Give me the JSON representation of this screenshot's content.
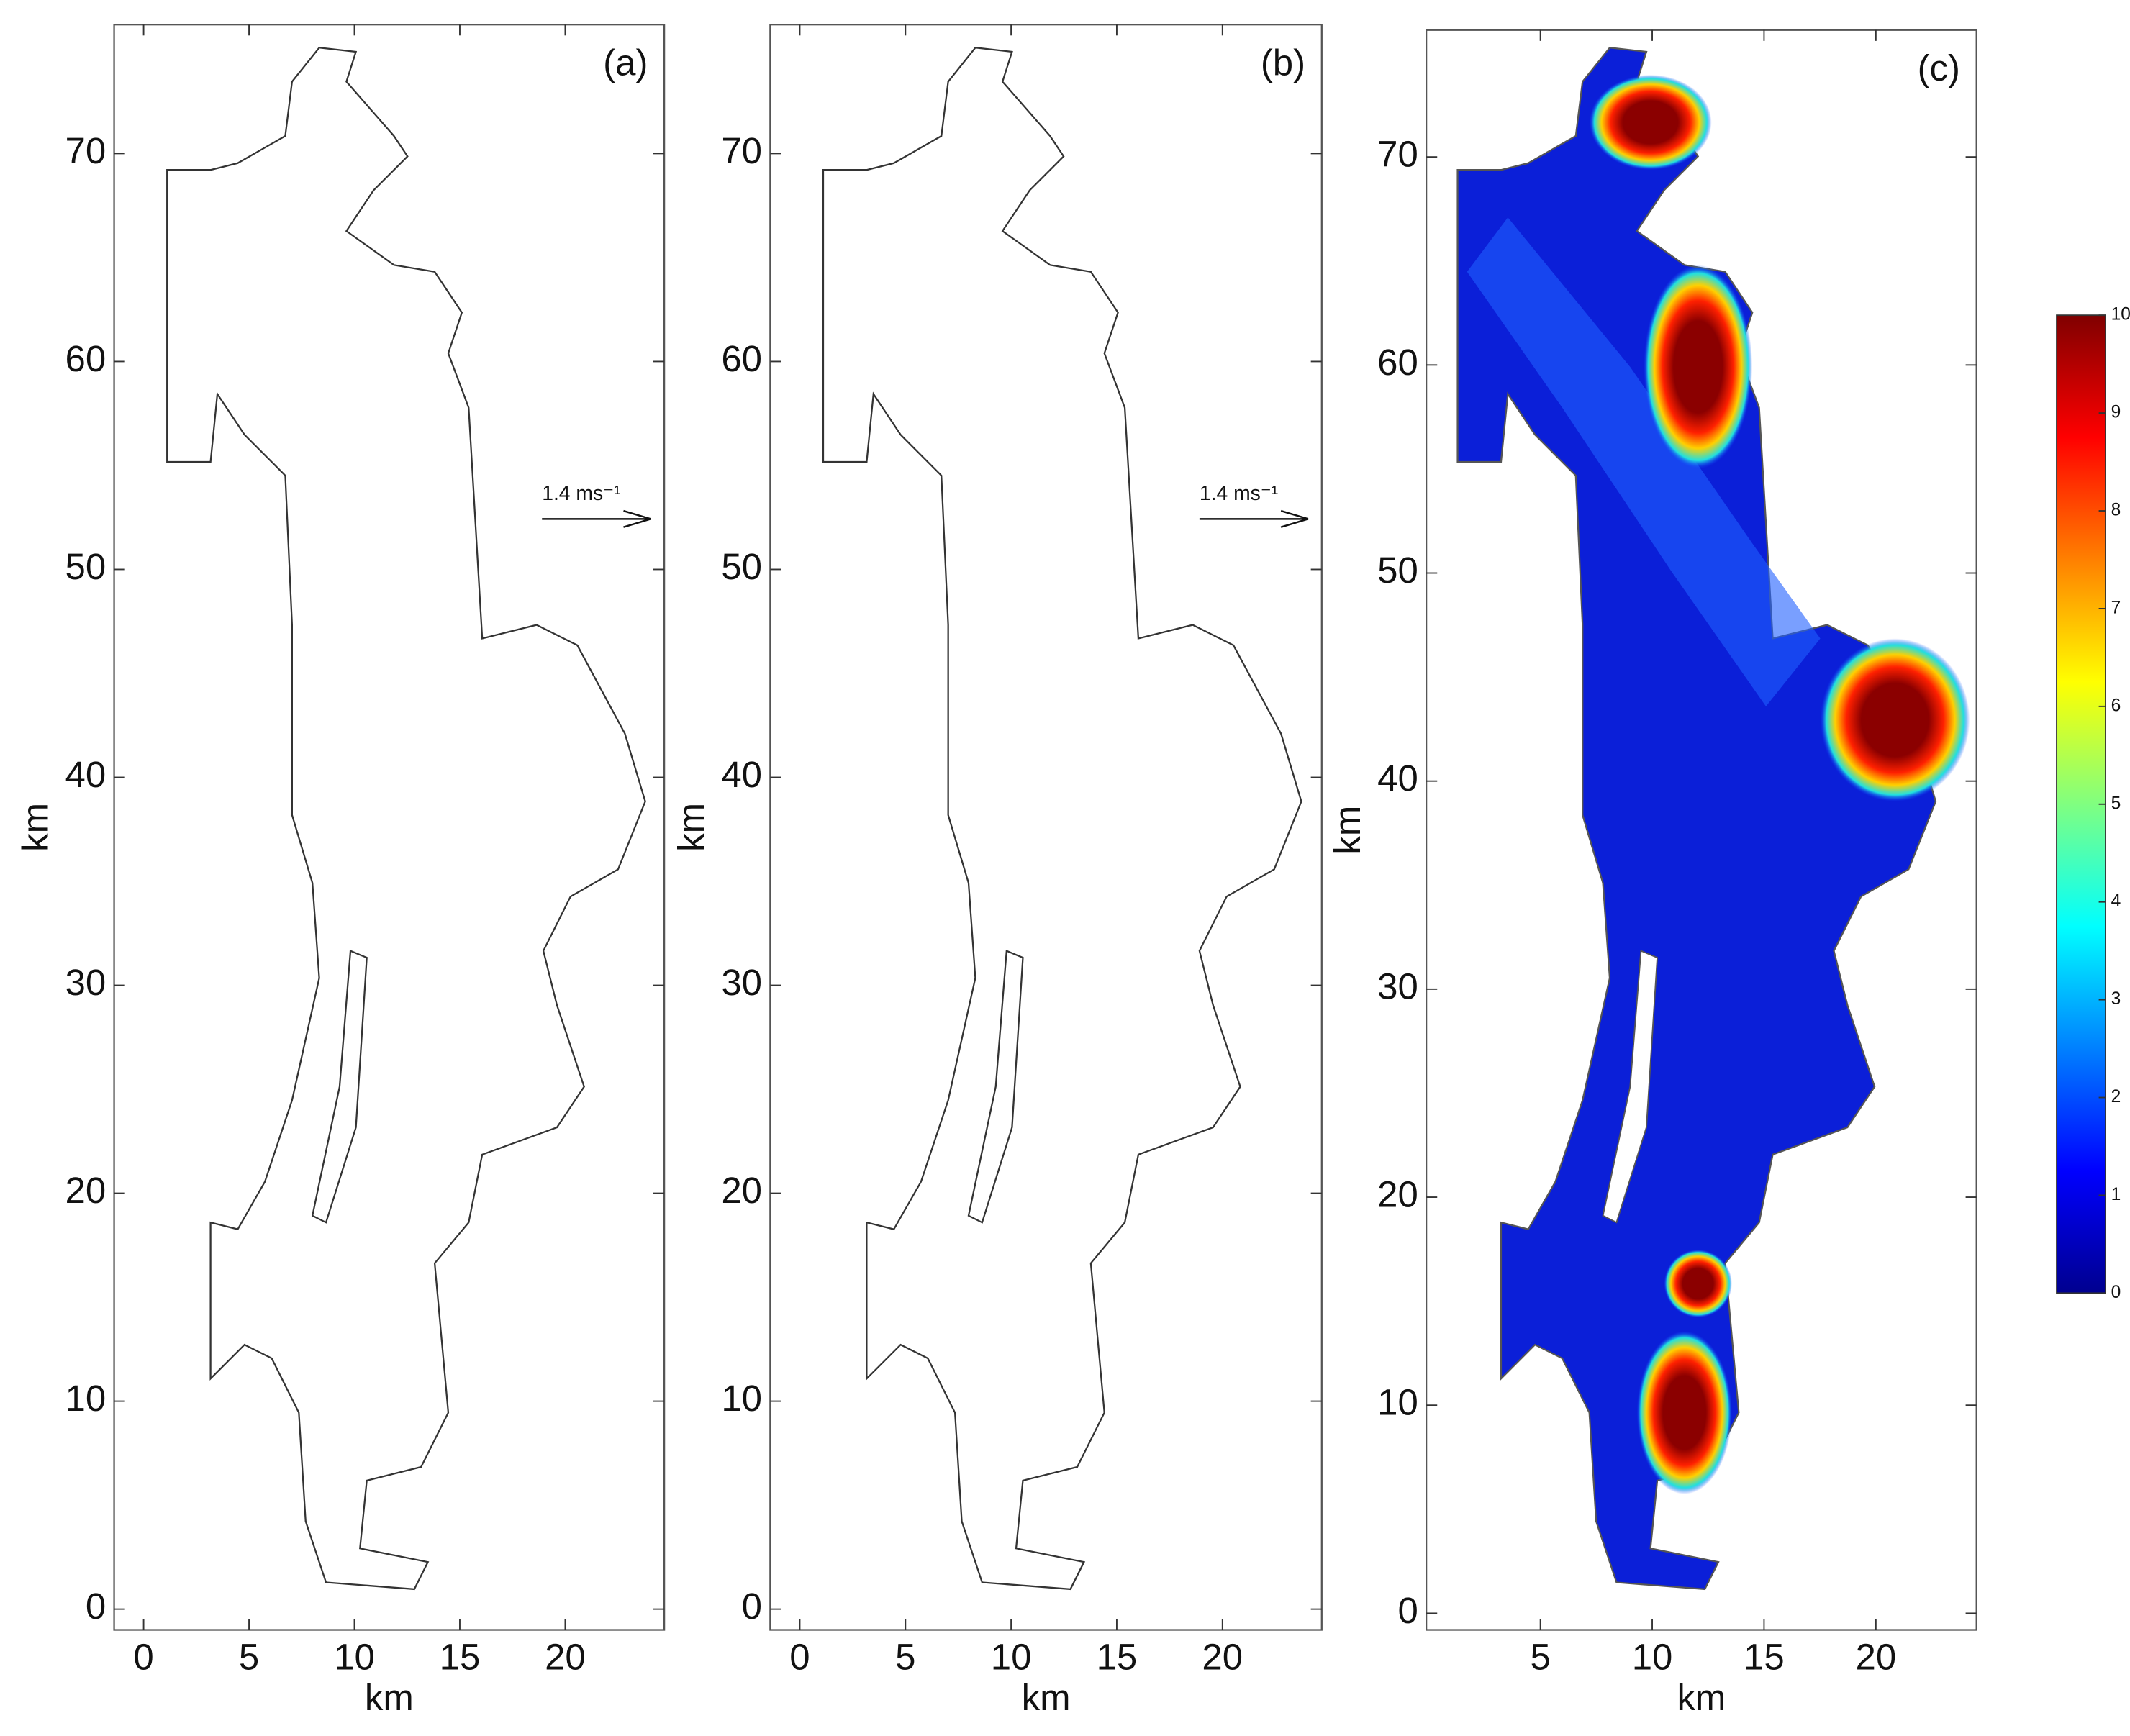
{
  "chart_data": [
    {
      "type": "quiver",
      "panel_label": "(a)",
      "xlabel": "km",
      "ylabel": "km",
      "xlim": [
        -1.4,
        24.7
      ],
      "ylim": [
        -1,
        76.2
      ],
      "xticks": [
        0,
        5,
        10,
        15,
        20
      ],
      "yticks": [
        0,
        10,
        20,
        30,
        40,
        50,
        60,
        70
      ],
      "annotation": "1.4 ms⁻¹"
    },
    {
      "type": "quiver",
      "panel_label": "(b)",
      "xlabel": "km",
      "ylabel": "km",
      "xlim": [
        -1.4,
        24.7
      ],
      "ylim": [
        -1,
        76.2
      ],
      "xticks": [
        0,
        5,
        10,
        15,
        20
      ],
      "yticks": [
        0,
        10,
        20,
        30,
        40,
        50,
        60,
        70
      ],
      "annotation": "1.4 ms⁻¹"
    },
    {
      "type": "heatmap",
      "panel_label": "(c)",
      "xlabel": "km",
      "ylabel": "km",
      "xlim": [
        -0.1,
        24.5
      ],
      "ylim": [
        -0.8,
        76.1
      ],
      "xticks": [
        5,
        10,
        15,
        20
      ],
      "yticks": [
        0,
        10,
        20,
        30,
        40,
        50,
        60,
        70
      ],
      "colorbar": {
        "colormap": "jet",
        "lim": [
          0,
          10
        ],
        "ticks": [
          0,
          1,
          2,
          3,
          4,
          5,
          6,
          7,
          8,
          9,
          10
        ]
      }
    }
  ]
}
